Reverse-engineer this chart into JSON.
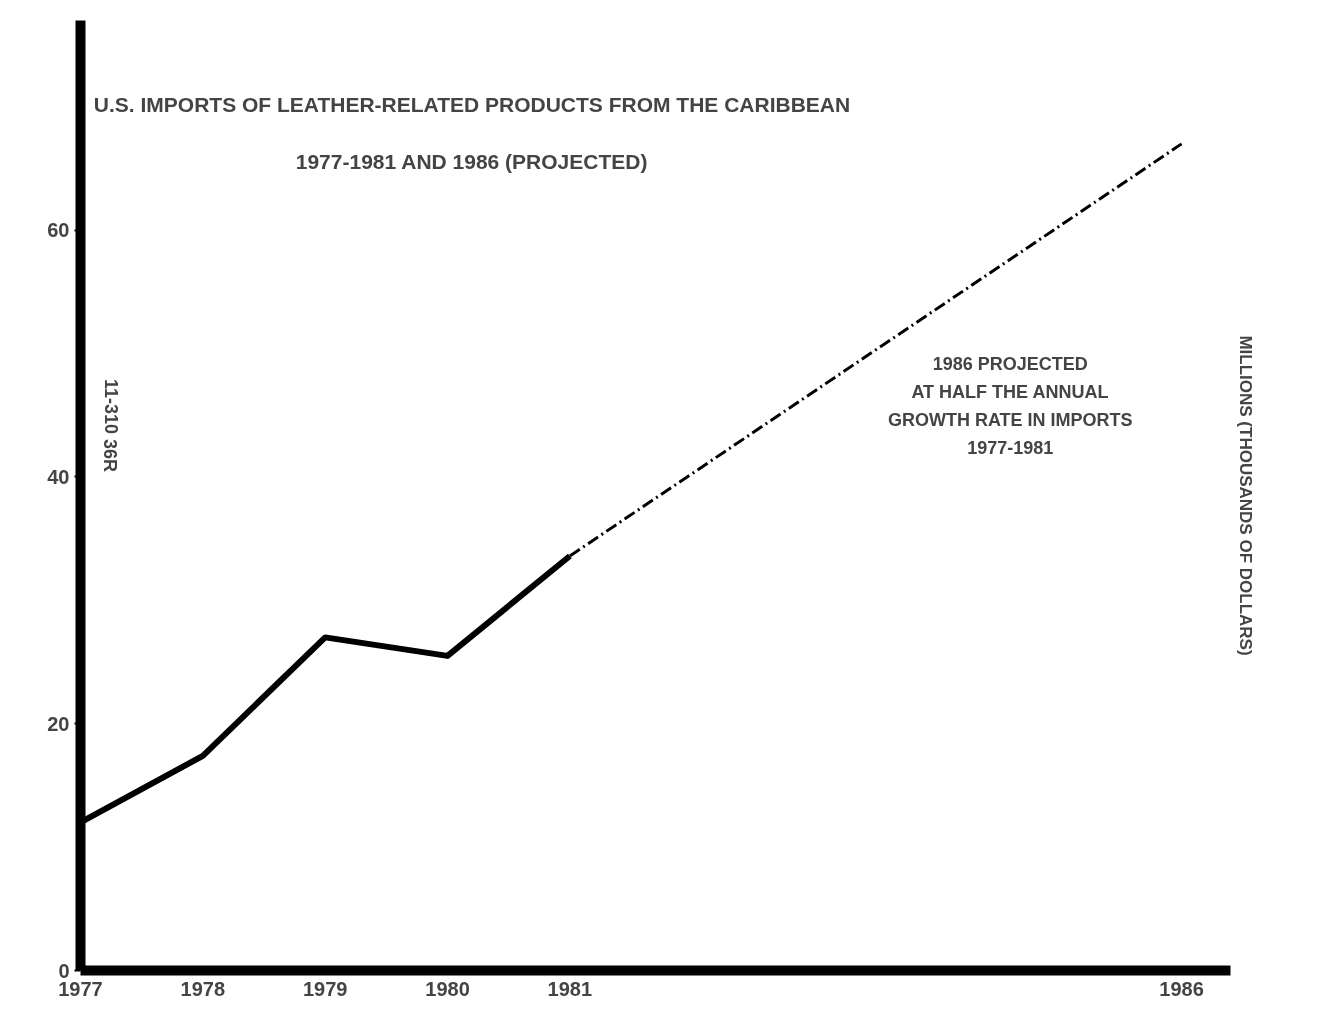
{
  "chart_data": {
    "type": "line",
    "title": "U.S. IMPORTS OF LEATHER-RELATED PRODUCTS FROM THE CARIBBEAN",
    "subtitle": "1977-1981 AND 1986 (PROJECTED)",
    "ylabel": "MILLIONS (THOUSANDS OF DOLLARS)",
    "series": [
      {
        "x": [
          1977,
          1978,
          1979,
          1980,
          1981
        ],
        "values": [
          12,
          17.4,
          27,
          25.5,
          33.6
        ],
        "color": "#000000",
        "line_style": "solid"
      },
      {
        "x": [
          1981,
          1986
        ],
        "values": [
          33.6,
          67
        ],
        "color": "#000000",
        "line_style": "dashed"
      }
    ],
    "xlim": [
      1977,
      1986.4
    ],
    "xticks": [
      1977,
      1978,
      1979,
      1980,
      1981,
      1986
    ],
    "ylim": [
      0,
      77
    ],
    "yticks": [
      0,
      20,
      40,
      60
    ],
    "annotations": [
      "1986 PROJECTED\nAT HALF THE ANNUAL\nGROWTH RATE IN IMPORTS\n1977-1981",
      "11-310   36R"
    ],
    "grid": false,
    "marker": "none"
  }
}
